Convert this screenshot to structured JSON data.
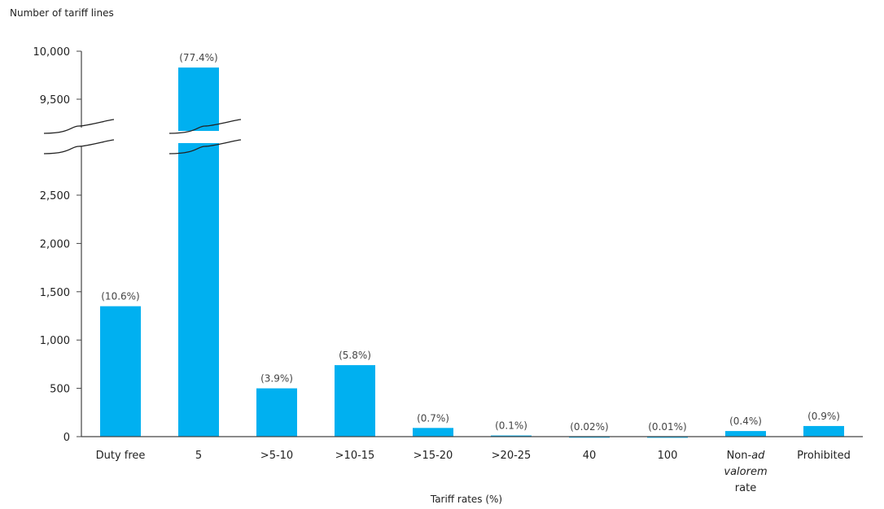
{
  "chart_data": {
    "type": "bar",
    "ylabel": "Number of tariff lines",
    "xlabel": "Tariff rates (%)",
    "categories": [
      "Duty free",
      "5",
      ">5-10",
      ">10-15",
      ">15-20",
      ">20-25",
      "40",
      "100",
      "Non-ad valorem rate",
      "Prohibited"
    ],
    "category_lines": [
      [
        {
          "t": "Duty free"
        }
      ],
      [
        {
          "t": "5"
        }
      ],
      [
        {
          "t": ">5-10"
        }
      ],
      [
        {
          "t": ">10-15"
        }
      ],
      [
        {
          "t": ">15-20"
        }
      ],
      [
        {
          "t": ">20-25"
        }
      ],
      [
        {
          "t": "40"
        }
      ],
      [
        {
          "t": "100"
        }
      ],
      [
        {
          "t": "Non-"
        },
        {
          "t": "ad",
          "i": true
        }
      ],
      [
        {
          "t": "valorem",
          "i": true
        }
      ],
      [
        {
          "t": "rate"
        }
      ],
      [
        {
          "t": "Prohibited"
        }
      ]
    ],
    "values": [
      1350,
      9830,
      500,
      740,
      90,
      12,
      2,
      1,
      58,
      110
    ],
    "value_labels": [
      "(10.6%)",
      "(77.4%)",
      "(3.9%)",
      "(5.8%)",
      "(0.7%)",
      "(0.1%)",
      "(0.02%)",
      "(0.01%)",
      "(0.4%)",
      "(0.9%)"
    ],
    "yticks": [
      {
        "value": 0,
        "label": "0"
      },
      {
        "value": 500,
        "label": "500"
      },
      {
        "value": 1000,
        "label": "1,000"
      },
      {
        "value": 1500,
        "label": "1,500"
      },
      {
        "value": 2000,
        "label": "2,000"
      },
      {
        "value": 2500,
        "label": "2,500"
      },
      {
        "value": 9500,
        "label": "9,500"
      },
      {
        "value": 10000,
        "label": "10,000"
      }
    ],
    "axis_break": {
      "from": 2700,
      "to": 9300
    },
    "ylim": [
      0,
      10000
    ],
    "bar_color": "#00B0F0",
    "grid": false,
    "legend": "none"
  }
}
